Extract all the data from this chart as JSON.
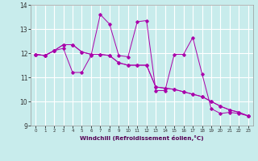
{
  "xlabel": "Windchill (Refroidissement éolien,°C)",
  "bg_color": "#c8ecec",
  "grid_color": "#ffffff",
  "line_color": "#aa00aa",
  "xlim": [
    -0.5,
    23.5
  ],
  "ylim": [
    9,
    14
  ],
  "xtick_labels": [
    "0",
    "1",
    "2",
    "3",
    "4",
    "5",
    "6",
    "7",
    "8",
    "9",
    "10",
    "11",
    "12",
    "13",
    "14",
    "15",
    "16",
    "17",
    "18",
    "19",
    "20",
    "21",
    "22",
    "23"
  ],
  "ytick_labels": [
    "9",
    "10",
    "11",
    "12",
    "13",
    "14"
  ],
  "s1": [
    11.95,
    11.9,
    12.1,
    12.2,
    11.2,
    11.2,
    11.9,
    13.6,
    13.2,
    11.9,
    11.85,
    13.3,
    13.35,
    10.45,
    10.45,
    11.95,
    11.95,
    12.65,
    11.15,
    9.7,
    9.5,
    9.55,
    9.5,
    9.4
  ],
  "s2": [
    11.95,
    11.9,
    12.1,
    12.35,
    12.35,
    12.05,
    11.95,
    11.95,
    11.9,
    11.6,
    11.5,
    11.5,
    11.5,
    10.6,
    10.55,
    10.5,
    10.4,
    10.3,
    10.2,
    10.0,
    9.8,
    9.65,
    9.55,
    9.4
  ],
  "s3": [
    11.95,
    11.9,
    12.1,
    12.35,
    12.35,
    12.05,
    11.95,
    11.95,
    11.9,
    11.6,
    11.5,
    11.5,
    11.5,
    10.6,
    10.55,
    10.5,
    10.4,
    10.3,
    10.2,
    10.0,
    9.8,
    9.65,
    9.55,
    9.4
  ]
}
